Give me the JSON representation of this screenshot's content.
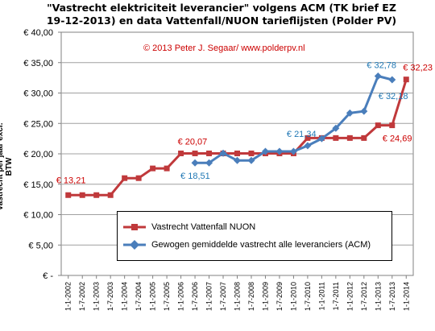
{
  "chart_data": {
    "type": "line",
    "title_lines": [
      "\"Vastrecht elektriciteit leverancier\" volgens ACM (TK brief EZ",
      "19-12-2013) en data Vattenfall/NUON tarieflijsten (Polder PV)"
    ],
    "annotation": "© 2013 Peter J. Segaar/ www.polderpv.nl",
    "ylabel": "Vastrecht per jaar excl. BTW",
    "xlabel": "",
    "ylim": [
      0,
      40
    ],
    "y_ticks": [
      "€ 40,00",
      "€ 35,00",
      "€ 30,00",
      "€ 25,00",
      "€ 20,00",
      "€ 15,00",
      "€ 10,00",
      "€ 5,00",
      "€ -"
    ],
    "x_ticks": [
      "1-1-2002",
      "1-7-2002",
      "1-1-2003",
      "1-7-2003",
      "1-1-2004",
      "1-7-2004",
      "1-1-2005",
      "1-7-2005",
      "1-1-2006",
      "1-7-2006",
      "1-1-2007",
      "1-7-2007",
      "1-1-2008",
      "1-7-2008",
      "1-1-2009",
      "1-7-2009",
      "1-1-2010",
      "1-7-2010",
      "1-1-2011",
      "1-7-2011",
      "1-1-2012",
      "1-7-2012",
      "1-1-2013",
      "1-7-2013",
      "1-1-2014"
    ],
    "grid": true,
    "legend_position": "bottom-center",
    "series": [
      {
        "name": "Vastrecht Vattenfall NUON",
        "color": "#c0393b",
        "values": [
          13.21,
          13.21,
          13.21,
          13.21,
          16.0,
          16.0,
          17.6,
          17.6,
          20.07,
          20.07,
          20.07,
          20.07,
          20.07,
          20.07,
          20.07,
          20.07,
          20.07,
          22.6,
          22.6,
          22.6,
          22.6,
          22.6,
          24.69,
          24.69,
          32.23
        ]
      },
      {
        "name": "Gewogen gemiddelde vastrecht alle leveranciers (ACM)",
        "color": "#4a7ebb",
        "values": [
          null,
          null,
          null,
          null,
          null,
          null,
          null,
          null,
          null,
          18.51,
          18.51,
          20.1,
          18.9,
          18.9,
          20.4,
          20.4,
          20.4,
          21.34,
          22.5,
          24.2,
          26.7,
          27.0,
          32.78,
          32.18,
          null
        ]
      }
    ],
    "data_labels": [
      {
        "text": "€ 13,21",
        "series": 0,
        "index": 0,
        "color": "#cc0000"
      },
      {
        "text": "€ 20,07",
        "series": 0,
        "index": 8,
        "color": "#cc0000"
      },
      {
        "text": "€ 24,69",
        "series": 0,
        "index": 23,
        "color": "#cc0000"
      },
      {
        "text": "€ 32,23",
        "series": 0,
        "index": 24,
        "color": "#cc0000"
      },
      {
        "text": "€ 18,51",
        "series": 1,
        "index": 9,
        "color": "#1f77b4"
      },
      {
        "text": "€ 21,34",
        "series": 1,
        "index": 17,
        "color": "#1f77b4"
      },
      {
        "text": "€ 32,78",
        "series": 1,
        "index": 22,
        "color": "#1f77b4"
      },
      {
        "text": "€ 32,18",
        "series": 1,
        "index": 23,
        "color": "#1f77b4"
      }
    ]
  }
}
